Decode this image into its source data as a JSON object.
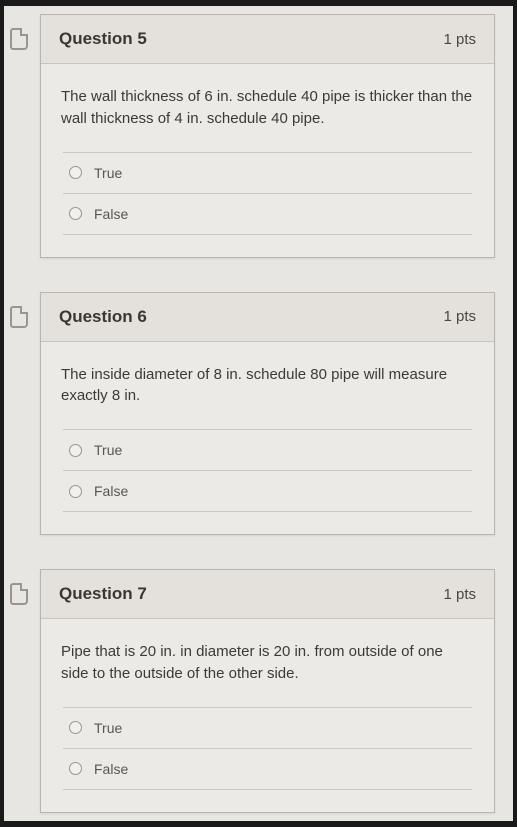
{
  "questions": [
    {
      "title": "Question 5",
      "points": "1 pts",
      "prompt": "The wall thickness of 6 in. schedule 40 pipe is thicker than the wall thickness of 4 in. schedule 40 pipe.",
      "options": [
        {
          "label": "True"
        },
        {
          "label": "False"
        }
      ]
    },
    {
      "title": "Question 6",
      "points": "1 pts",
      "prompt": "The inside diameter of 8 in. schedule 80 pipe will measure exactly 8 in.",
      "options": [
        {
          "label": "True"
        },
        {
          "label": "False"
        }
      ]
    },
    {
      "title": "Question 7",
      "points": "1 pts",
      "prompt": "Pipe that is 20 in. in diameter is 20 in. from outside of one side to the outside of the other side.",
      "options": [
        {
          "label": "True"
        },
        {
          "label": "False"
        }
      ]
    }
  ]
}
